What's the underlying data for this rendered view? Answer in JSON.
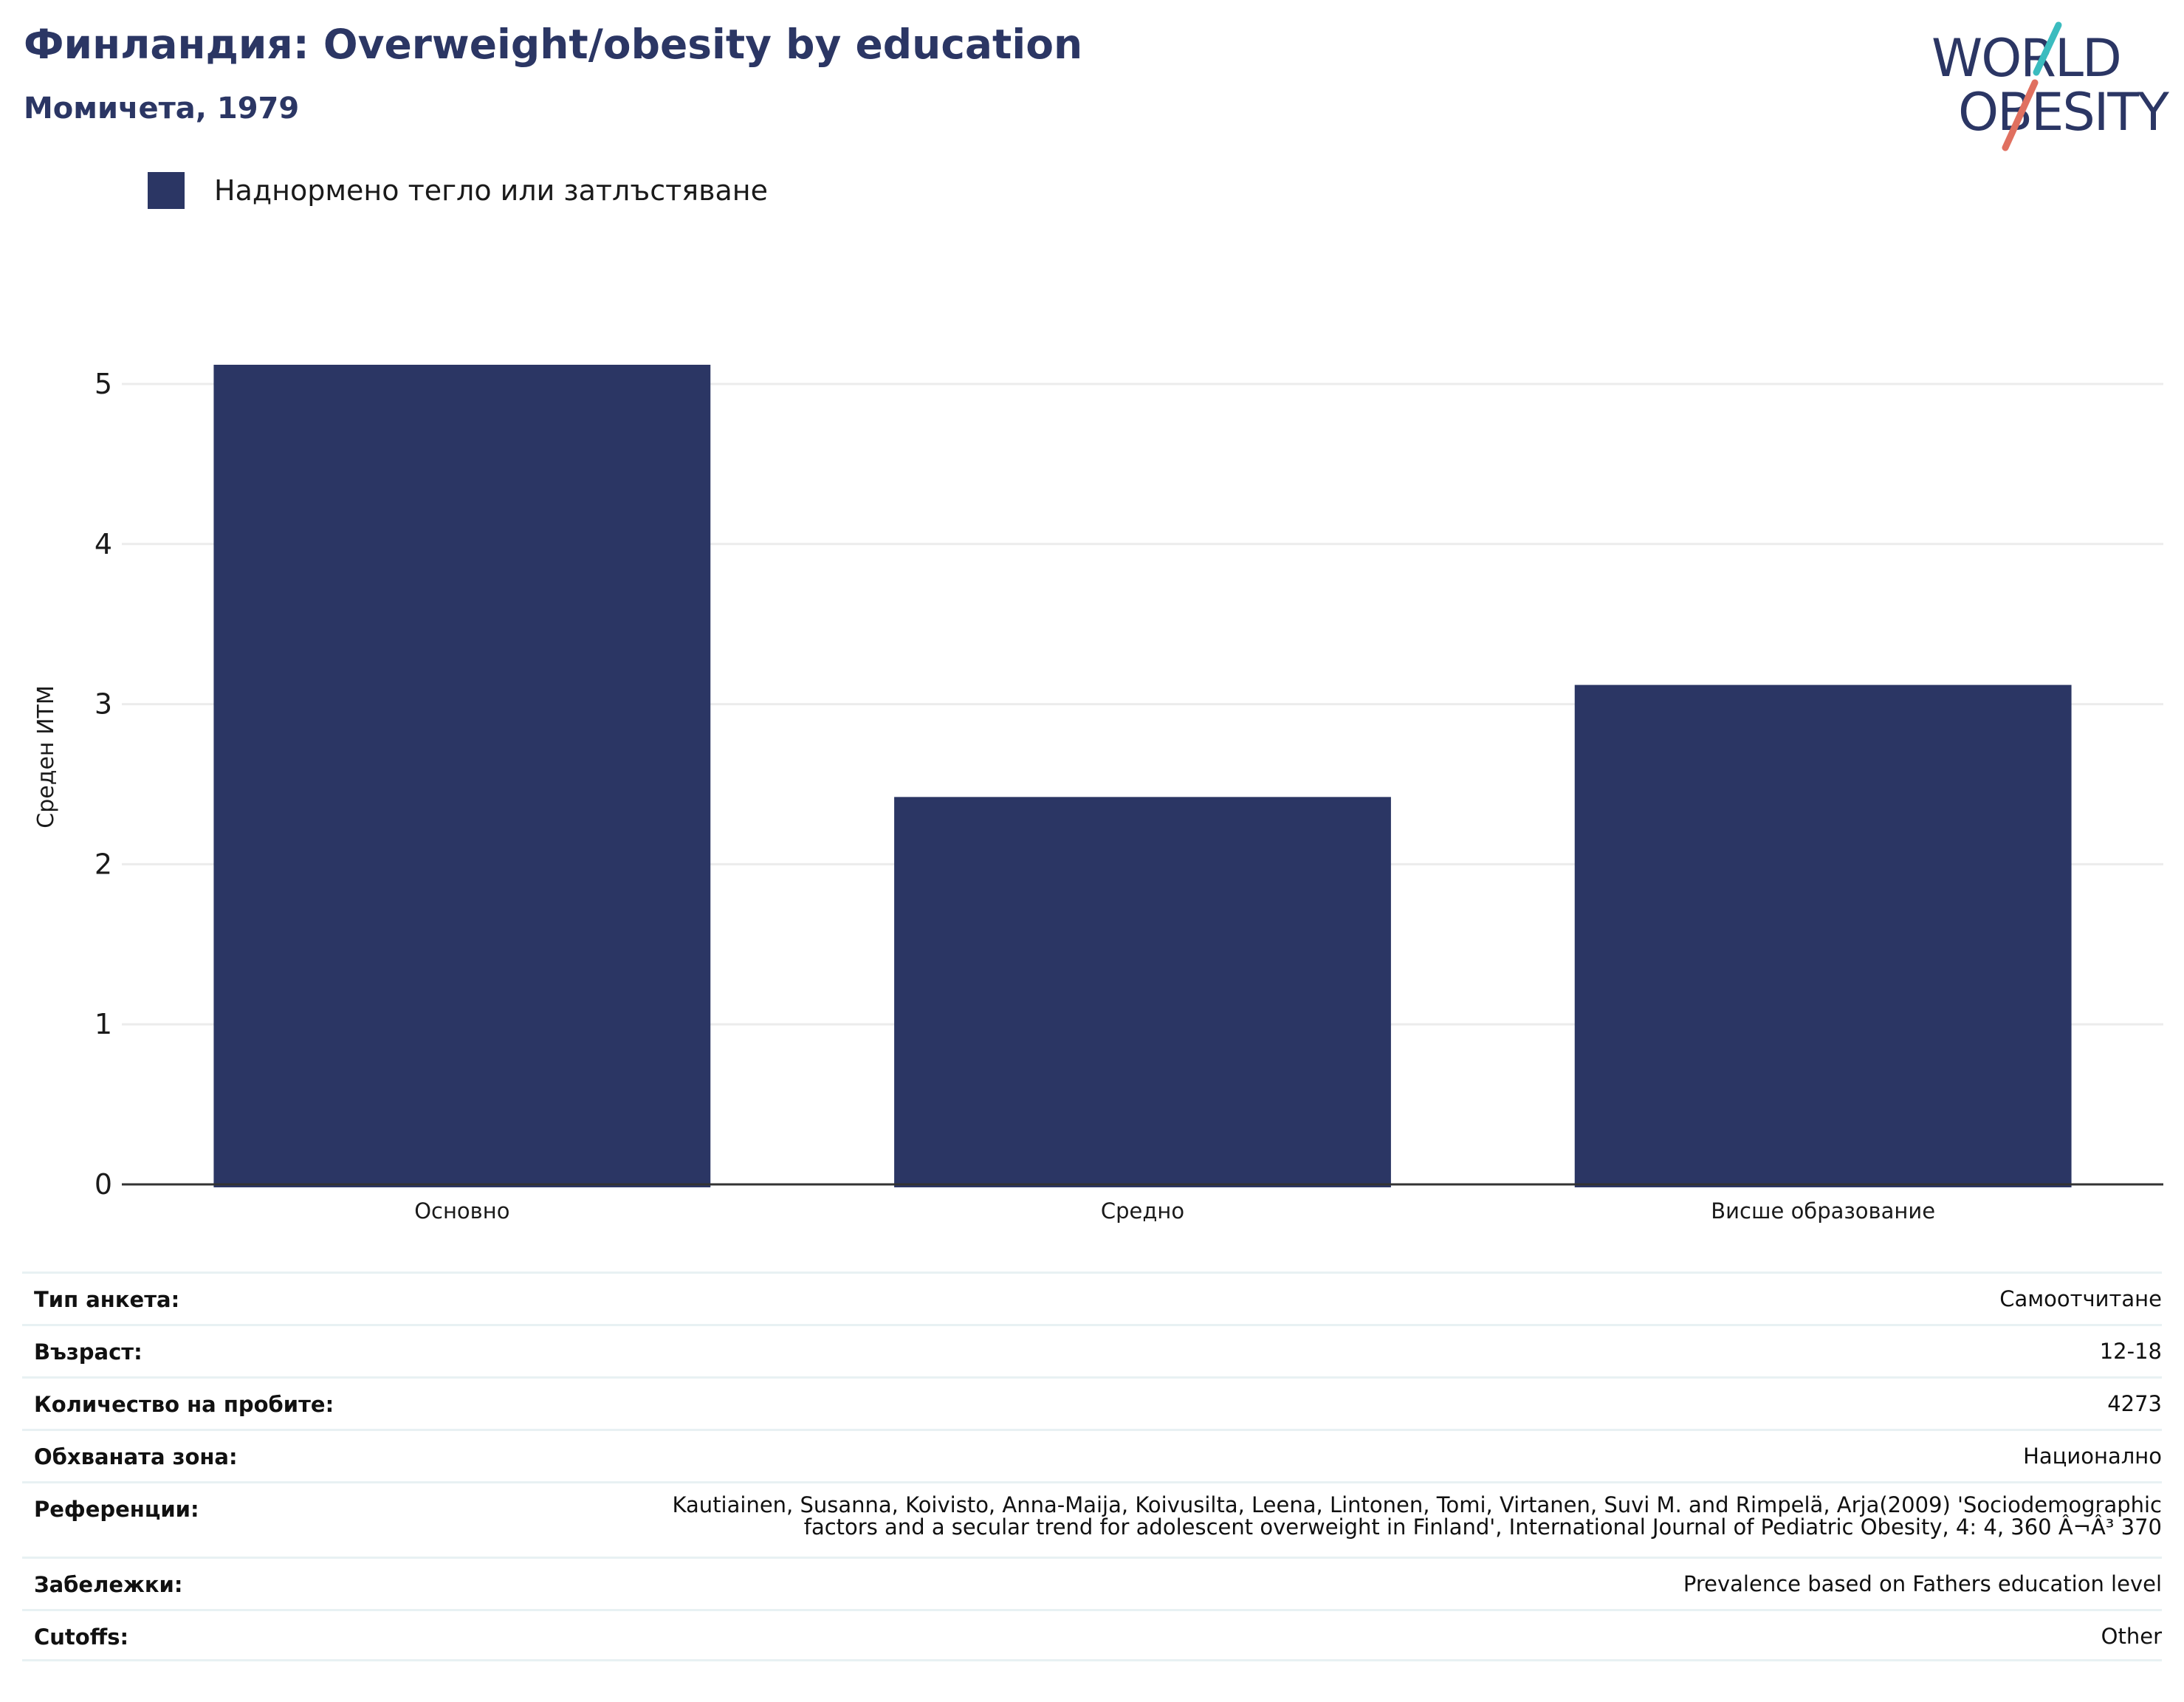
{
  "header": {
    "title": "Финландия: Overweight/obesity by education",
    "subtitle": "Момичета, 1979"
  },
  "logo": {
    "line1": "WORLD",
    "line2": "OBESITY",
    "text_color": "#2b3664",
    "accent_teal": "#3bbcbf",
    "accent_coral": "#e07060"
  },
  "colors": {
    "bar": "#2b3664",
    "grid": "#ececec",
    "axis": "#333333"
  },
  "chart_data": {
    "type": "bar",
    "categories": [
      "Основно",
      "Средно",
      "Висше образование"
    ],
    "series": [
      {
        "name": "Наднормено тегло или затлъстяване",
        "values": [
          5.12,
          2.42,
          3.12
        ]
      }
    ],
    "ylabel": "Среден ИТМ",
    "xlabel": "",
    "ylim": [
      0,
      5.5
    ],
    "yticks": [
      0,
      1,
      2,
      3,
      4,
      5
    ],
    "grid": true,
    "legend": "top-left"
  },
  "info": [
    {
      "label": "Тип анкета:",
      "value": "Самоотчитане"
    },
    {
      "label": "Възраст:",
      "value": "12-18"
    },
    {
      "label": "Количество на пробите:",
      "value": "4273"
    },
    {
      "label": "Обхваната зона:",
      "value": "Национално"
    },
    {
      "label": "Референции:",
      "value_lines": [
        "Kautiainen, Susanna, Koivisto, Anna-Maija, Koivusilta, Leena, Lintonen, Tomi, Virtanen, Suvi M. and Rimpelä, Arja(2009) 'Sociodemographic",
        "factors and a secular trend for adolescent overweight in Finland', International Journal of Pediatric Obesity, 4: 4, 360 Â¬Â³ 370"
      ]
    },
    {
      "label": "Забележки:",
      "value": "Prevalence based on Fathers education level"
    },
    {
      "label": "Cutoffs:",
      "value": "Other"
    }
  ]
}
